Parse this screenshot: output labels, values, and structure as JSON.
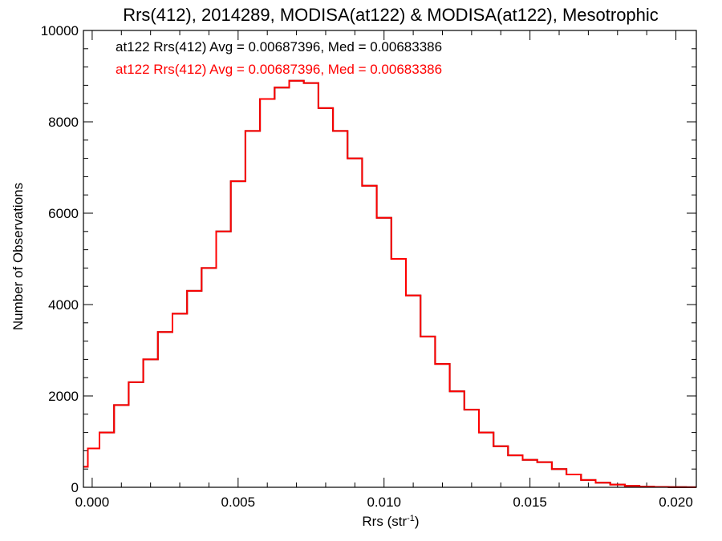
{
  "chart_data": {
    "type": "line",
    "title": "Rrs(412), 2014289, MODISA(at122) & MODISA(at122), Mesotrophic",
    "xlabel": "Rrs (str",
    "xlabel_sup": "-1",
    "xlabel_end": ")",
    "ylabel": "Number of Observations",
    "xlim": [
      -0.0003,
      0.0207
    ],
    "ylim": [
      0,
      10000
    ],
    "xticks": [
      0.0,
      0.005,
      0.01,
      0.015,
      0.02
    ],
    "xtick_labels": [
      "0.000",
      "0.005",
      "0.010",
      "0.015",
      "0.020"
    ],
    "yticks": [
      0,
      2000,
      4000,
      6000,
      8000,
      10000
    ],
    "ytick_labels": [
      "0",
      "2000",
      "4000",
      "6000",
      "8000",
      "10000"
    ],
    "grid": false,
    "legend_position": "top-left",
    "series": [
      {
        "name": "at122 Rrs(412) Avg = 0.00687396, Med = 0.00683386",
        "color": "#000000",
        "x": [
          -0.0003,
          0.0,
          0.0005,
          0.001,
          0.0015,
          0.002,
          0.0025,
          0.003,
          0.0035,
          0.004,
          0.0045,
          0.005,
          0.0055,
          0.006,
          0.0065,
          0.007,
          0.0075,
          0.008,
          0.0085,
          0.009,
          0.0095,
          0.01,
          0.0105,
          0.011,
          0.0115,
          0.012,
          0.0125,
          0.013,
          0.0135,
          0.014,
          0.0145,
          0.015,
          0.0155,
          0.016,
          0.0165,
          0.017,
          0.0175,
          0.018,
          0.0185,
          0.019,
          0.0195,
          0.02,
          0.0207
        ],
        "y": [
          450,
          850,
          1200,
          1800,
          2300,
          2800,
          3400,
          3800,
          4300,
          4800,
          5600,
          6700,
          7800,
          8500,
          8750,
          8900,
          8850,
          8300,
          7800,
          7200,
          6600,
          5900,
          5000,
          4200,
          3300,
          2700,
          2100,
          1700,
          1200,
          900,
          700,
          600,
          550,
          400,
          280,
          160,
          100,
          60,
          30,
          15,
          8,
          5,
          2
        ]
      },
      {
        "name": "at122 Rrs(412) Avg = 0.00687396, Med = 0.00683386",
        "color": "#ff0000",
        "x": [
          -0.0003,
          0.0,
          0.0005,
          0.001,
          0.0015,
          0.002,
          0.0025,
          0.003,
          0.0035,
          0.004,
          0.0045,
          0.005,
          0.0055,
          0.006,
          0.0065,
          0.007,
          0.0075,
          0.008,
          0.0085,
          0.009,
          0.0095,
          0.01,
          0.0105,
          0.011,
          0.0115,
          0.012,
          0.0125,
          0.013,
          0.0135,
          0.014,
          0.0145,
          0.015,
          0.0155,
          0.016,
          0.0165,
          0.017,
          0.0175,
          0.018,
          0.0185,
          0.019,
          0.0195,
          0.02,
          0.0207
        ],
        "y": [
          450,
          850,
          1200,
          1800,
          2300,
          2800,
          3400,
          3800,
          4300,
          4800,
          5600,
          6700,
          7800,
          8500,
          8750,
          8900,
          8850,
          8300,
          7800,
          7200,
          6600,
          5900,
          5000,
          4200,
          3300,
          2700,
          2100,
          1700,
          1200,
          900,
          700,
          600,
          550,
          400,
          280,
          160,
          100,
          60,
          30,
          15,
          8,
          5,
          2
        ]
      }
    ]
  }
}
